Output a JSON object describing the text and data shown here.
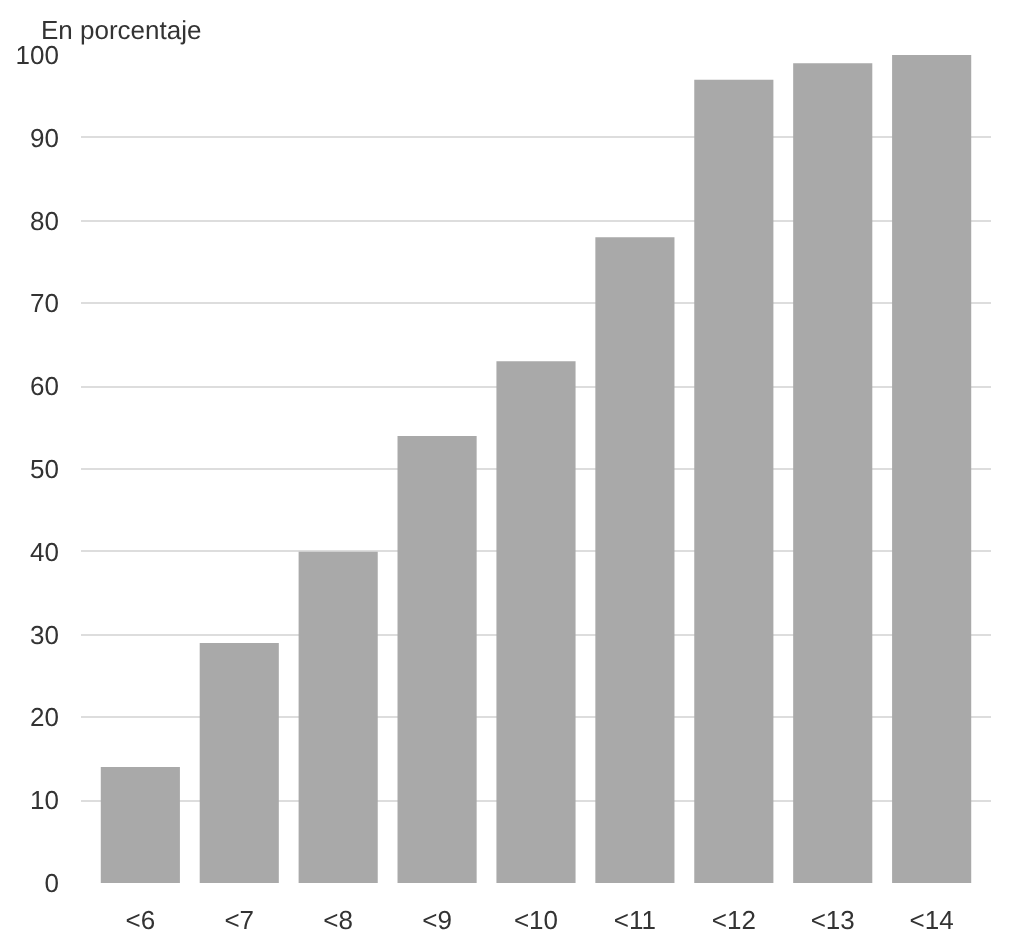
{
  "chart_data": {
    "type": "bar",
    "ylabel": "En porcentaje",
    "categories": [
      "<6",
      "<7",
      "<8",
      "<9",
      "<10",
      "<11",
      "<12",
      "<13",
      "<14"
    ],
    "values": [
      14,
      29,
      40,
      54,
      63,
      78,
      97,
      99,
      100
    ],
    "color": "#a9a9a9",
    "ylim": [
      0,
      100
    ],
    "yticks": [
      0,
      10,
      20,
      30,
      40,
      50,
      60,
      70,
      80,
      90,
      100
    ],
    "grid": "y"
  }
}
